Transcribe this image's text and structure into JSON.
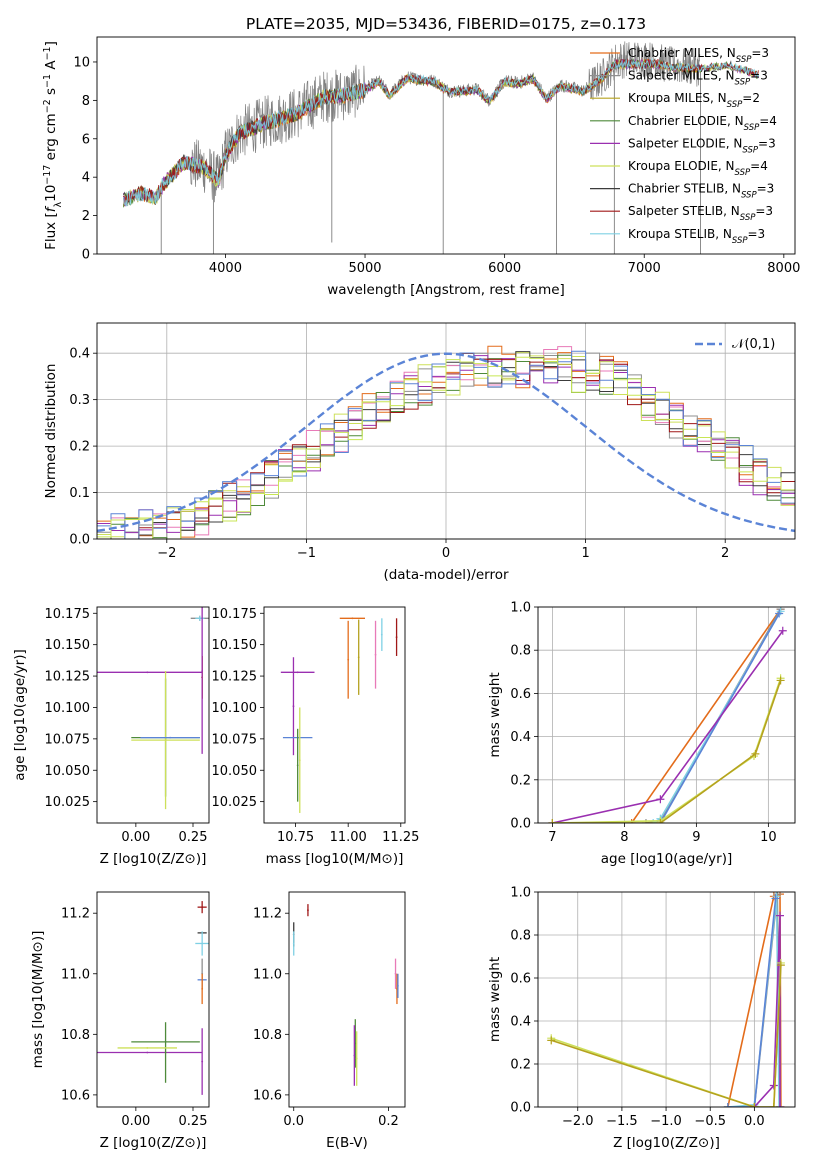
{
  "figure_title": "PLATE=2035, MJD=53436, FIBERID=0175, z=0.173",
  "colors": {
    "Chabrier MILES": "#e36c1b",
    "Salpeter MILES": "#8f8f8f",
    "Kroupa MILES": "#b5a21e",
    "Chabrier ELODIE": "#4e8a3a",
    "Salpeter ELODIE": "#9a2fb0",
    "Kroupa ELODIE": "#cde05a",
    "Chabrier STELIB": "#3c3c3c",
    "Salpeter STELIB": "#a01818",
    "Kroupa STELIB": "#7fd0e4",
    "data_spectrum": "#808080",
    "gaussian": "#5b84d6",
    "hist_pink": "#e87ab8",
    "hist_blue": "#5b84d6",
    "hist_lime": "#c8e655"
  },
  "chart_data": [
    {
      "id": "spectrum",
      "type": "line",
      "xlabel": "wavelength [Angstrom, rest frame]",
      "ylabel": "Flux [f_λ 10^-17 erg cm^-2 s^-1 A^-1]",
      "xlim": [
        3080,
        8080
      ],
      "ylim": [
        0,
        11.3
      ],
      "xticks": [
        4000,
        5000,
        6000,
        7000,
        8000
      ],
      "yticks": [
        0,
        2,
        4,
        6,
        8,
        10
      ],
      "legend": {
        "position": "top-right",
        "entries": [
          {
            "label": "Chabrier MILES, N",
            "sub": "SSP",
            "tail": "=3",
            "color": "#e36c1b"
          },
          {
            "label": "Salpeter MILES, N",
            "sub": "SSP",
            "tail": "=3",
            "color": "#8f8f8f"
          },
          {
            "label": "Kroupa MILES, N",
            "sub": "SSP",
            "tail": "=2",
            "color": "#b5a21e"
          },
          {
            "label": "Chabrier ELODIE, N",
            "sub": "SSP",
            "tail": "=4",
            "color": "#4e8a3a"
          },
          {
            "label": "Salpeter ELODIE, N",
            "sub": "SSP",
            "tail": "=3",
            "color": "#9a2fb0"
          },
          {
            "label": "Kroupa ELODIE, N",
            "sub": "SSP",
            "tail": "=4",
            "color": "#cde05a"
          },
          {
            "label": "Chabrier STELIB, N",
            "sub": "SSP",
            "tail": "=3",
            "color": "#3c3c3c"
          },
          {
            "label": "Salpeter STELIB, N",
            "sub": "SSP",
            "tail": "=3",
            "color": "#a01818"
          },
          {
            "label": "Kroupa STELIB, N",
            "sub": "SSP",
            "tail": "=3",
            "color": "#7fd0e4"
          }
        ]
      },
      "data_continuum": {
        "x": [
          3270,
          3400,
          3500,
          3550,
          3700,
          3850,
          3950,
          4000,
          4100,
          4300,
          4500,
          4700,
          4861,
          5000,
          5100,
          5175,
          5300,
          5500,
          5600,
          5700,
          5800,
          5890,
          6000,
          6100,
          6200,
          6300,
          6400,
          6563,
          6700,
          6800,
          7000,
          7200,
          7400,
          7600,
          7800
        ],
        "y": [
          2.8,
          3.2,
          2.9,
          3.6,
          4.8,
          4.5,
          3.8,
          5.2,
          6.3,
          6.9,
          7.3,
          8.2,
          8.3,
          8.6,
          9.0,
          8.3,
          9.2,
          9.0,
          8.5,
          8.5,
          8.6,
          8.0,
          9.0,
          8.9,
          9.2,
          8.1,
          8.8,
          8.5,
          9.2,
          10.1,
          10.2,
          9.8,
          9.7,
          9.9,
          9.4
        ]
      },
      "data_spikes": [
        {
          "x": 3540,
          "y": 0
        },
        {
          "x": 3914,
          "y": 0
        },
        {
          "x": 4762,
          "y": 0.6
        },
        {
          "x": 5560,
          "y": 0
        },
        {
          "x": 6372,
          "y": 0
        },
        {
          "x": 6786,
          "y": 0
        },
        {
          "x": 7403,
          "y": 0
        }
      ]
    },
    {
      "id": "residuals",
      "type": "line",
      "xlabel": "(data-model)/error",
      "ylabel": "Normed distribution",
      "xlim": [
        -2.5,
        2.5
      ],
      "ylim": [
        0,
        0.465
      ],
      "xticks": [
        -2,
        -1,
        0,
        1,
        2
      ],
      "yticks": [
        0.0,
        0.1,
        0.2,
        0.3,
        0.4
      ],
      "grid": true,
      "legend": {
        "position": "top-right",
        "entries": [
          {
            "label": "𝒩(0,1)",
            "color": "#5b84d6",
            "style": "dashed"
          }
        ]
      },
      "gaussian": {
        "mean": 0,
        "sigma": 1
      },
      "histogram": {
        "bin_edges": [
          -2.5,
          -2.4,
          -2.3,
          -2.2,
          -2.1,
          -2.0,
          -1.9,
          -1.8,
          -1.7,
          -1.6,
          -1.5,
          -1.4,
          -1.3,
          -1.2,
          -1.1,
          -1.0,
          -0.9,
          -0.8,
          -0.7,
          -0.6,
          -0.5,
          -0.4,
          -0.3,
          -0.2,
          -0.1,
          0.0,
          0.1,
          0.2,
          0.3,
          0.4,
          0.5,
          0.6,
          0.7,
          0.8,
          0.9,
          1.0,
          1.1,
          1.2,
          1.3,
          1.4,
          1.5,
          1.6,
          1.7,
          1.8,
          1.9,
          2.0,
          2.1,
          2.2,
          2.3,
          2.4,
          2.5
        ],
        "envelope": [
          0.005,
          0.01,
          0.015,
          0.02,
          0.025,
          0.03,
          0.04,
          0.05,
          0.06,
          0.08,
          0.09,
          0.11,
          0.13,
          0.15,
          0.17,
          0.19,
          0.21,
          0.23,
          0.25,
          0.27,
          0.29,
          0.31,
          0.32,
          0.33,
          0.34,
          0.35,
          0.36,
          0.37,
          0.37,
          0.37,
          0.37,
          0.37,
          0.37,
          0.37,
          0.36,
          0.36,
          0.35,
          0.34,
          0.32,
          0.3,
          0.28,
          0.26,
          0.24,
          0.22,
          0.2,
          0.18,
          0.16,
          0.14,
          0.12,
          0.1
        ]
      }
    },
    {
      "id": "Z_age",
      "type": "scatter",
      "xlabel": "Z [log10(Z/Z⊙)]",
      "ylabel": "age [log10(age/yr)]",
      "xlim": [
        -0.17,
        0.32
      ],
      "ylim": [
        10.008,
        10.18
      ],
      "xticks": [
        0.0,
        0.25
      ],
      "yticks": [
        10.025,
        10.05,
        10.075,
        10.1,
        10.125,
        10.15,
        10.175
      ],
      "points": [
        {
          "x": 0.28,
          "y": 10.171,
          "xerr": 0.04,
          "yerr": 0.002,
          "color": "#8f8f8f"
        },
        {
          "x": 0.28,
          "y": 10.171,
          "xerr": 0.02,
          "yerr": 0.002,
          "color": "#7fd0e4"
        },
        {
          "x": 0.29,
          "y": 10.124,
          "xerr": 0.0,
          "yerr": 0.017,
          "color": "#a01818"
        },
        {
          "x": 0.29,
          "y": 10.124,
          "xerr": 0.0,
          "yerr": 0.017,
          "color": "#e36c1b"
        },
        {
          "x": 0.29,
          "y": 10.129,
          "xerr": 0.0,
          "yerr": 0.066,
          "color": "#9a2fb0"
        },
        {
          "x": 0.05,
          "y": 10.128,
          "xerr": 0.24,
          "yerr": 0.0,
          "color": "#9a2fb0"
        },
        {
          "x": 0.13,
          "y": 10.076,
          "xerr": 0.15,
          "yerr": 0.047,
          "color": "#4e8a3a"
        },
        {
          "x": 0.13,
          "y": 10.074,
          "xerr": 0.15,
          "yerr": 0.055,
          "color": "#cde05a"
        },
        {
          "x": 0.15,
          "y": 10.076,
          "xerr": 0.13,
          "yerr": 0.0,
          "color": "#5b84d6"
        }
      ]
    },
    {
      "id": "mass_age",
      "type": "scatter",
      "xlabel": "mass [log10(M/M⊙)]",
      "ylabel": "",
      "xlim": [
        10.6,
        11.27
      ],
      "ylim": [
        10.008,
        10.18
      ],
      "xticks": [
        10.75,
        11.0,
        11.25
      ],
      "yticks": [
        10.025,
        10.05,
        10.075,
        10.1,
        10.125,
        10.15,
        10.175
      ],
      "points": [
        {
          "x": 11.02,
          "y": 10.171,
          "xerr": 0.06,
          "yerr": 0.0,
          "color": "#e36c1b"
        },
        {
          "x": 11.0,
          "y": 10.138,
          "xerr": 0.0,
          "yerr": 0.031,
          "color": "#e36c1b"
        },
        {
          "x": 11.05,
          "y": 10.14,
          "xerr": 0.0,
          "yerr": 0.03,
          "color": "#b5a21e"
        },
        {
          "x": 11.13,
          "y": 10.142,
          "xerr": 0.0,
          "yerr": 0.027,
          "color": "#e87ab8"
        },
        {
          "x": 11.16,
          "y": 10.158,
          "xerr": 0.0,
          "yerr": 0.013,
          "color": "#7fd0e4"
        },
        {
          "x": 11.23,
          "y": 10.156,
          "xerr": 0.0,
          "yerr": 0.015,
          "color": "#a01818"
        },
        {
          "x": 10.76,
          "y": 10.128,
          "xerr": 0.08,
          "yerr": 0.0,
          "color": "#9a2fb0"
        },
        {
          "x": 10.74,
          "y": 10.101,
          "xerr": 0.0,
          "yerr": 0.039,
          "color": "#9a2fb0"
        },
        {
          "x": 10.76,
          "y": 10.076,
          "xerr": 0.07,
          "yerr": 0.0,
          "color": "#5b84d6"
        },
        {
          "x": 10.77,
          "y": 10.058,
          "xerr": 0.0,
          "yerr": 0.042,
          "color": "#cde05a"
        },
        {
          "x": 10.76,
          "y": 10.054,
          "xerr": 0.0,
          "yerr": 0.029,
          "color": "#4e8a3a"
        }
      ]
    },
    {
      "id": "age_weight",
      "type": "line",
      "xlabel": "age [log10(age/yr)]",
      "ylabel": "mass weight",
      "xlim": [
        6.8,
        10.37
      ],
      "ylim": [
        0,
        1
      ],
      "xticks": [
        7,
        8,
        9,
        10
      ],
      "yticks": [
        0.0,
        0.2,
        0.4,
        0.6,
        0.8,
        1.0
      ],
      "grid": true,
      "series": [
        {
          "color": "#e36c1b",
          "x": [
            8.1,
            10.17
          ],
          "y": [
            0.0,
            0.99
          ]
        },
        {
          "color": "#8f8f8f",
          "x": [
            8.3,
            8.5,
            10.17
          ],
          "y": [
            0.0,
            0.01,
            0.99
          ]
        },
        {
          "color": "#7fd0e4",
          "x": [
            8.4,
            8.5,
            10.17
          ],
          "y": [
            0.0,
            0.02,
            0.98
          ]
        },
        {
          "color": "#5b84d6",
          "x": [
            8.5,
            10.15
          ],
          "y": [
            0.0,
            0.97
          ]
        },
        {
          "color": "#9a2fb0",
          "x": [
            7.0,
            8.5,
            10.2
          ],
          "y": [
            0.0,
            0.11,
            0.89
          ]
        },
        {
          "color": "#cde05a",
          "x": [
            7.0,
            8.5,
            9.8,
            10.17
          ],
          "y": [
            0.0,
            0.01,
            0.31,
            0.67
          ]
        },
        {
          "color": "#b5a21e",
          "x": [
            7.0,
            8.5,
            9.82,
            10.17
          ],
          "y": [
            0.0,
            0.0,
            0.32,
            0.66
          ]
        }
      ]
    },
    {
      "id": "Z_mass",
      "type": "scatter",
      "xlabel": "Z [log10(Z/Z⊙)]",
      "ylabel": "mass [log10(M/M⊙)]",
      "xlim": [
        -0.17,
        0.32
      ],
      "ylim": [
        10.56,
        11.27
      ],
      "xticks": [
        0.0,
        0.25
      ],
      "yticks": [
        10.6,
        10.8,
        11.0,
        11.2
      ],
      "points": [
        {
          "x": 0.29,
          "y": 11.22,
          "xerr": 0.02,
          "yerr": 0.02,
          "color": "#a01818"
        },
        {
          "x": 0.29,
          "y": 11.135,
          "xerr": 0.02,
          "yerr": 0.0,
          "color": "#3c3c3c"
        },
        {
          "x": 0.29,
          "y": 11.1,
          "xerr": 0.03,
          "yerr": 0.04,
          "color": "#7fd0e4"
        },
        {
          "x": 0.29,
          "y": 11.0,
          "xerr": 0.0,
          "yerr": 0.05,
          "color": "#8f8f8f"
        },
        {
          "x": 0.29,
          "y": 10.98,
          "xerr": 0.02,
          "yerr": 0.0,
          "color": "#5b84d6"
        },
        {
          "x": 0.29,
          "y": 10.95,
          "xerr": 0.0,
          "yerr": 0.05,
          "color": "#e36c1b"
        },
        {
          "x": 0.29,
          "y": 10.71,
          "xerr": 0.0,
          "yerr": 0.11,
          "color": "#9a2fb0"
        },
        {
          "x": 0.05,
          "y": 10.74,
          "xerr": 0.24,
          "yerr": 0.0,
          "color": "#9a2fb0"
        },
        {
          "x": 0.13,
          "y": 10.775,
          "xerr": 0.15,
          "yerr": 0.0,
          "color": "#4e8a3a"
        },
        {
          "x": 0.13,
          "y": 10.74,
          "xerr": 0.0,
          "yerr": 0.1,
          "color": "#4e8a3a"
        },
        {
          "x": 0.05,
          "y": 10.755,
          "xerr": 0.13,
          "yerr": 0.0,
          "color": "#cde05a"
        }
      ]
    },
    {
      "id": "EBV_mass",
      "type": "scatter",
      "xlabel": "E(B-V)",
      "ylabel": "",
      "xlim": [
        -0.01,
        0.235
      ],
      "ylim": [
        10.56,
        11.27
      ],
      "xticks": [
        0.0,
        0.2
      ],
      "yticks": [
        10.6,
        10.8,
        11.0,
        11.2
      ],
      "points": [
        {
          "x": 0.03,
          "y": 11.21,
          "xerr": 0.0,
          "yerr": 0.02,
          "color": "#a01818"
        },
        {
          "x": 0.0,
          "y": 11.13,
          "xerr": 0.0,
          "yerr": 0.04,
          "color": "#3c3c3c"
        },
        {
          "x": 0.0,
          "y": 11.1,
          "xerr": 0.0,
          "yerr": 0.04,
          "color": "#7fd0e4"
        },
        {
          "x": 0.215,
          "y": 11.0,
          "xerr": 0.0,
          "yerr": 0.05,
          "color": "#e87ab8"
        },
        {
          "x": 0.218,
          "y": 10.95,
          "xerr": 0.0,
          "yerr": 0.05,
          "color": "#e36c1b"
        },
        {
          "x": 0.22,
          "y": 10.96,
          "xerr": 0.0,
          "yerr": 0.04,
          "color": "#5b84d6"
        },
        {
          "x": 0.13,
          "y": 10.77,
          "xerr": 0.0,
          "yerr": 0.08,
          "color": "#4e8a3a"
        },
        {
          "x": 0.128,
          "y": 10.73,
          "xerr": 0.0,
          "yerr": 0.1,
          "color": "#9a2fb0"
        },
        {
          "x": 0.133,
          "y": 10.72,
          "xerr": 0.0,
          "yerr": 0.09,
          "color": "#cde05a"
        }
      ]
    },
    {
      "id": "Z_weight",
      "type": "line",
      "xlabel": "Z [log10(Z/Z⊙)]",
      "ylabel": "mass weight",
      "xlim": [
        -2.45,
        0.46
      ],
      "ylim": [
        0,
        1
      ],
      "xticks": [
        -2.0,
        -1.5,
        -1.0,
        -0.5,
        0.0
      ],
      "yticks": [
        0.0,
        0.2,
        0.4,
        0.6,
        0.8,
        1.0
      ],
      "grid": true,
      "series": [
        {
          "color": "#e36c1b",
          "x": [
            -0.3,
            0.22,
            0.29,
            0.3
          ],
          "y": [
            0.0,
            0.98,
            0.99,
            0.0
          ]
        },
        {
          "color": "#8f8f8f",
          "x": [
            -0.3,
            0.0,
            0.26,
            0.29
          ],
          "y": [
            0.0,
            0.0,
            0.99,
            0.0
          ]
        },
        {
          "color": "#7fd0e4",
          "x": [
            -0.3,
            0.0,
            0.25,
            0.28
          ],
          "y": [
            0.0,
            0.01,
            0.98,
            0.0
          ]
        },
        {
          "color": "#5b84d6",
          "x": [
            -0.3,
            0.0,
            0.24
          ],
          "y": [
            0.0,
            0.0,
            0.97
          ]
        },
        {
          "color": "#9a2fb0",
          "x": [
            0.0,
            0.22,
            0.29,
            0.29
          ],
          "y": [
            0.0,
            0.1,
            0.89,
            0.0
          ]
        },
        {
          "color": "#cde05a",
          "x": [
            -2.3,
            0.0,
            0.22,
            0.3
          ],
          "y": [
            0.32,
            0.0,
            0.0,
            0.67
          ]
        },
        {
          "color": "#b5a21e",
          "x": [
            -2.3,
            0.0,
            0.22,
            0.3
          ],
          "y": [
            0.31,
            0.0,
            0.0,
            0.66
          ]
        }
      ]
    }
  ]
}
